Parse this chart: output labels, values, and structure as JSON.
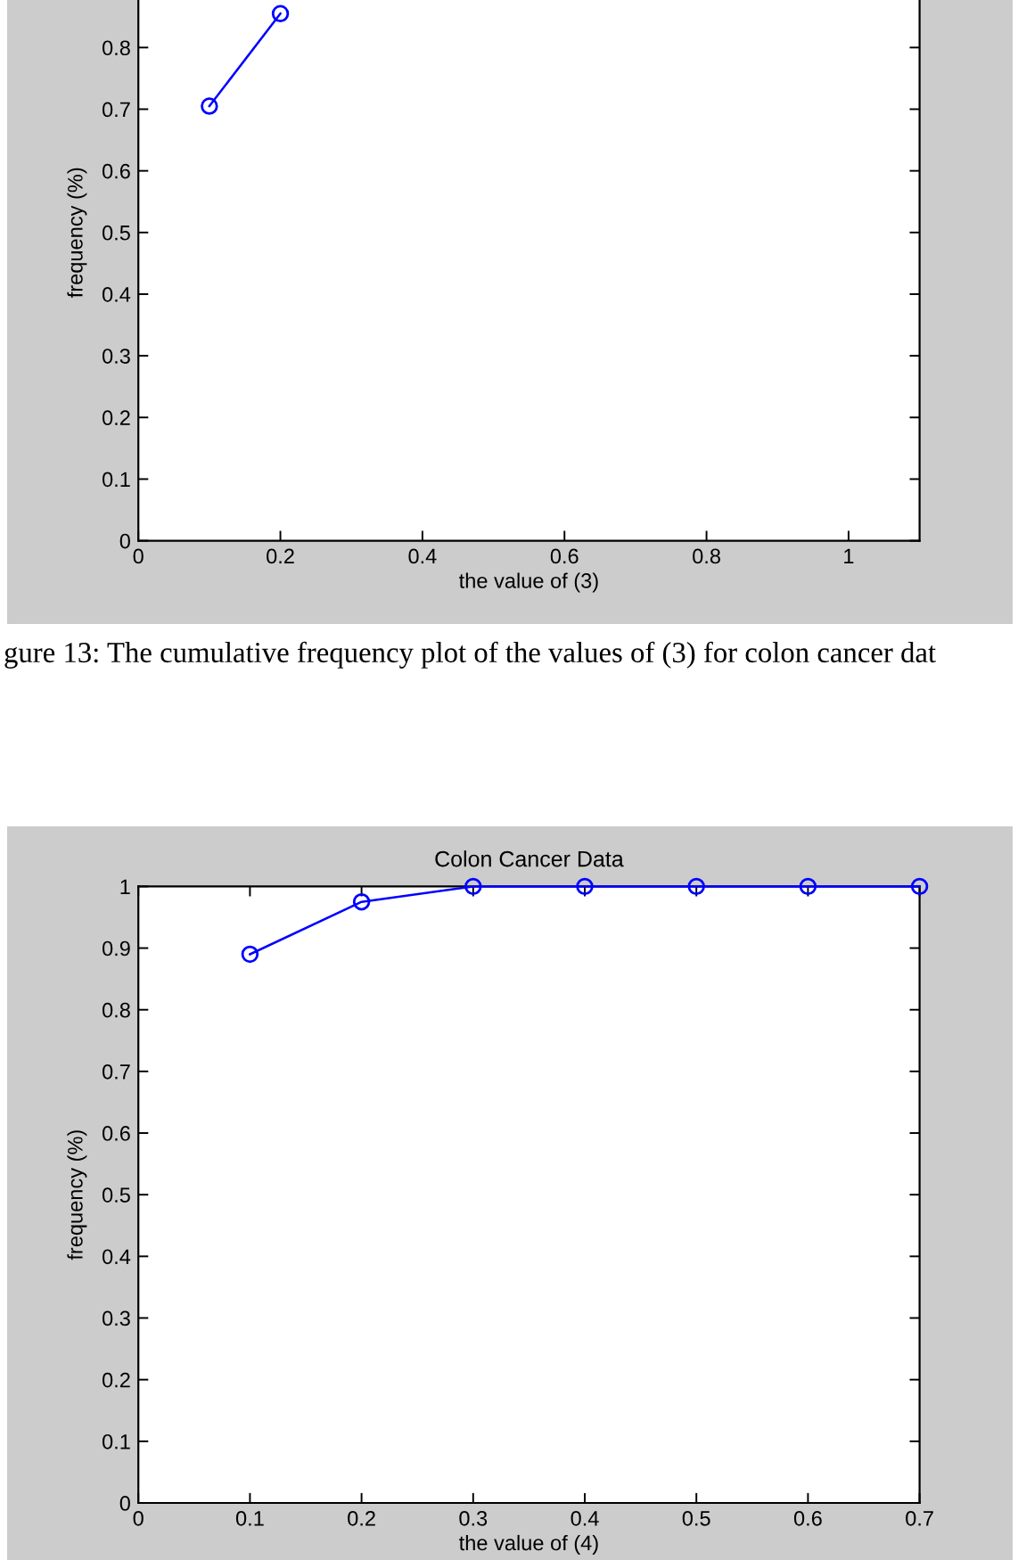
{
  "chart_data": [
    {
      "type": "line",
      "xlabel": "the value of (3)",
      "ylabel": "frequency (%)",
      "x": [
        0.1,
        0.2
      ],
      "series": [
        {
          "color": "#0000ff",
          "values": [
            0.705,
            0.855
          ]
        }
      ],
      "marker": "circle",
      "line_style": "solid",
      "xlim": [
        0,
        1.1
      ],
      "xticks": [
        0,
        0.2,
        0.4,
        0.6,
        0.8,
        1
      ],
      "ylim": [
        0,
        1
      ],
      "yticks": [
        0,
        0.1,
        0.2,
        0.3,
        0.4,
        0.5,
        0.6,
        0.7,
        0.8
      ],
      "annotations": [
        "gure 13: The cumulative frequency plot of the values of (3) for colon cancer dat"
      ]
    },
    {
      "type": "line",
      "title": "Colon Cancer Data",
      "xlabel": "the value of (4)",
      "ylabel": "frequency (%)",
      "x": [
        0.1,
        0.2,
        0.3,
        0.4,
        0.5,
        0.6,
        0.7
      ],
      "series": [
        {
          "color": "#0000ff",
          "values": [
            0.89,
            0.975,
            1,
            1,
            1,
            1,
            1
          ]
        }
      ],
      "marker": "circle",
      "line_style": "solid",
      "xlim": [
        0,
        0.7
      ],
      "xticks": [
        0,
        0.1,
        0.2,
        0.3,
        0.4,
        0.5,
        0.6,
        0.7
      ],
      "ylim": [
        0,
        1
      ],
      "yticks": [
        0,
        0.1,
        0.2,
        0.3,
        0.4,
        0.5,
        0.6,
        0.7,
        0.8,
        0.9,
        1
      ]
    }
  ]
}
